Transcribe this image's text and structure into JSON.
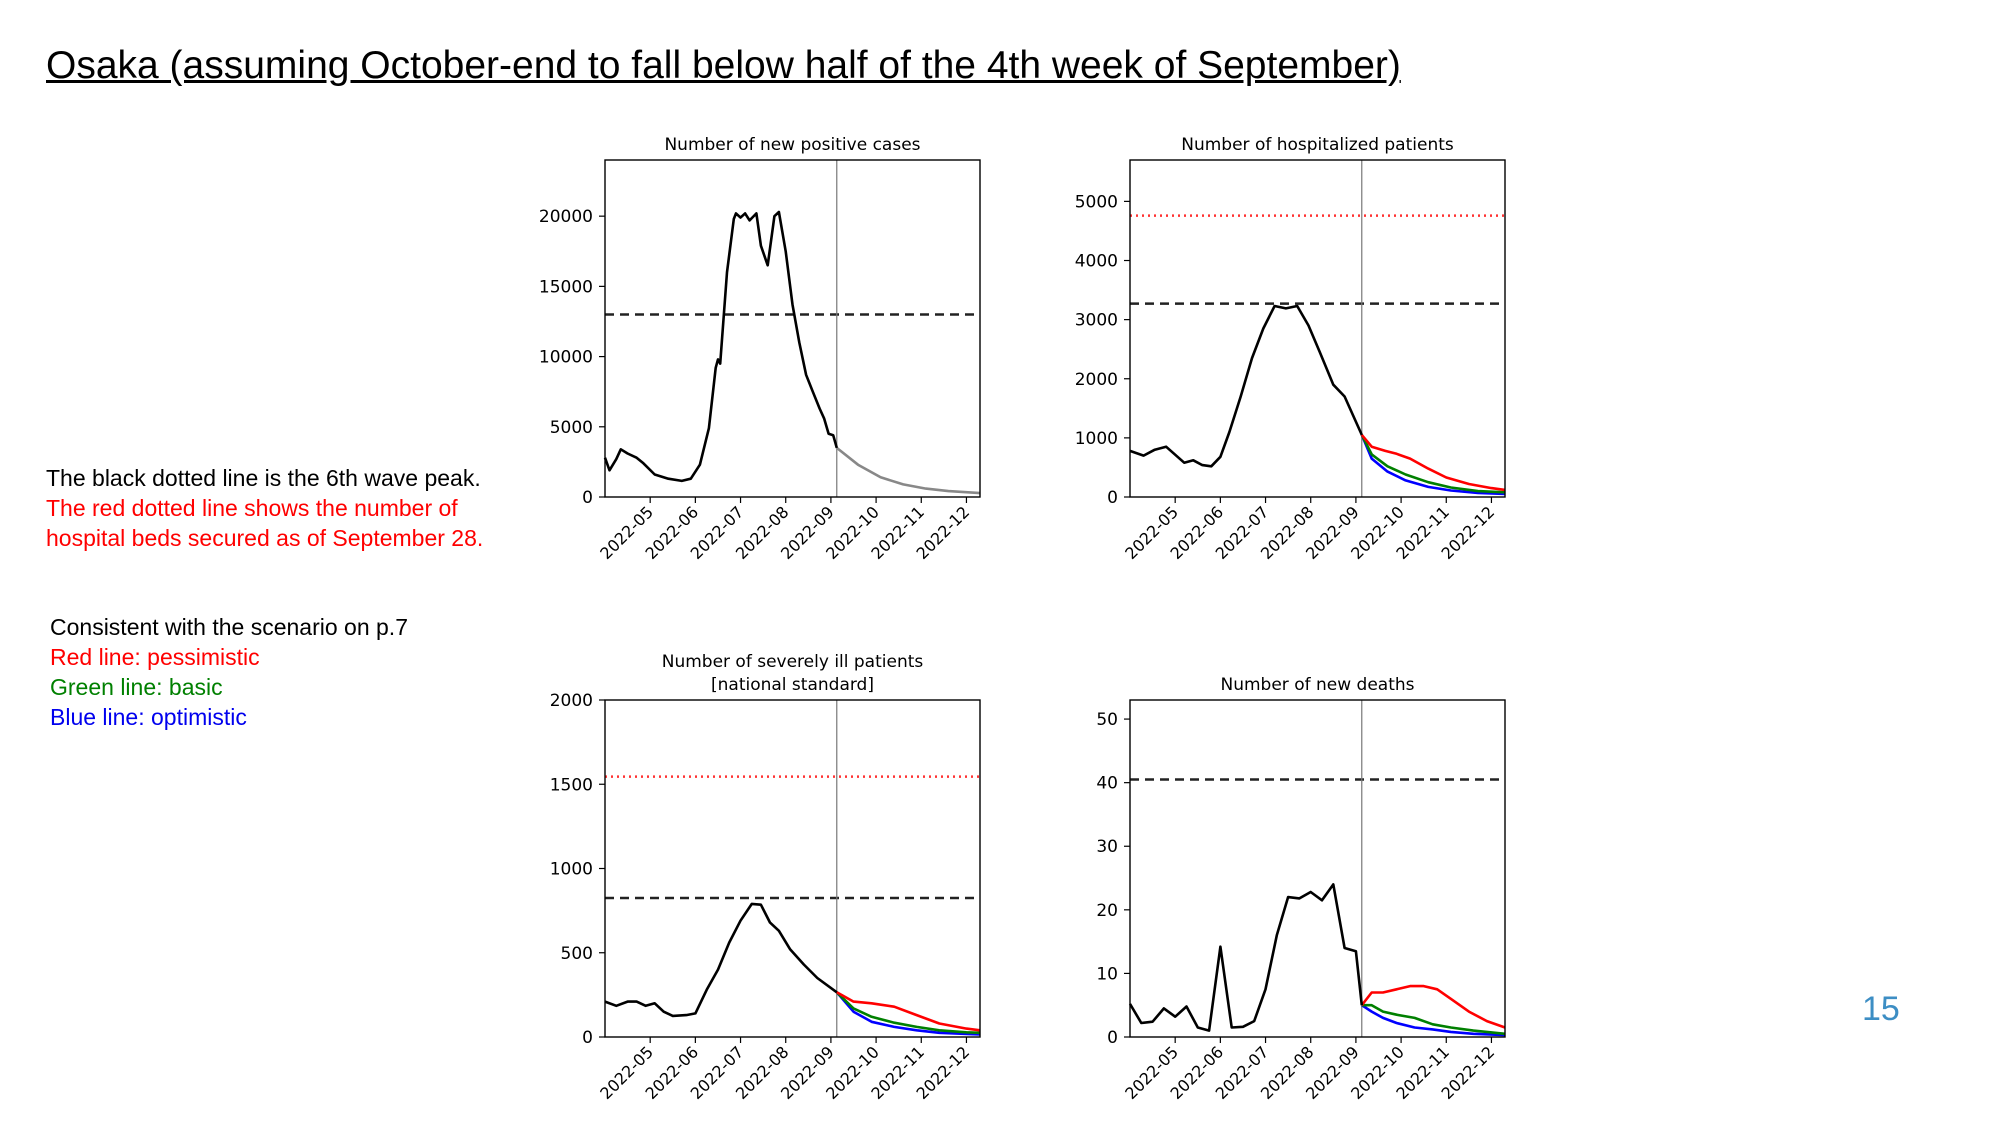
{
  "slide": {
    "title": "Osaka (assuming October-end to fall below half of the 4th week of September)",
    "page_number": "15"
  },
  "notes": {
    "black_line": "The black dotted line is the 6th wave peak.",
    "red_line_1": "The red dotted line shows the number of",
    "red_line_2": "hospital beds secured as of September 28.",
    "scenario_title": "Consistent with the scenario on p.7",
    "red_scenario": "Red line: pessimistic",
    "green_scenario": "Green line: basic",
    "blue_scenario": "Blue line: optimistic"
  },
  "colors": {
    "actual": "#000000",
    "pessimistic": "#ff0000",
    "basic": "#008000",
    "optimistic": "#0000ff",
    "projection_single": "#888888",
    "peak_line": "#222222",
    "bed_line": "#ff3333",
    "divider": "#777777",
    "accent_page_number": "#3d8ec4"
  },
  "chart_data": [
    {
      "id": "positive",
      "type": "line",
      "title": [
        "Number of new positive cases"
      ],
      "xlabel": "",
      "ylabel": "",
      "x_ticks": [
        "2022-05",
        "2022-06",
        "2022-07",
        "2022-08",
        "2022-09",
        "2022-10",
        "2022-11",
        "2022-12"
      ],
      "xlim": [
        4.0,
        12.3
      ],
      "ylim": [
        0,
        24000
      ],
      "y_ticks": [
        0,
        5000,
        10000,
        15000,
        20000
      ],
      "divider_x": 9.13,
      "peak_line": 13000,
      "actual": [
        [
          4.0,
          2800
        ],
        [
          4.1,
          1900
        ],
        [
          4.25,
          2700
        ],
        [
          4.35,
          3400
        ],
        [
          4.5,
          3100
        ],
        [
          4.7,
          2800
        ],
        [
          4.85,
          2400
        ],
        [
          5.1,
          1600
        ],
        [
          5.4,
          1300
        ],
        [
          5.7,
          1150
        ],
        [
          5.9,
          1300
        ],
        [
          6.1,
          2300
        ],
        [
          6.3,
          4900
        ],
        [
          6.45,
          9200
        ],
        [
          6.5,
          9800
        ],
        [
          6.55,
          9500
        ],
        [
          6.7,
          16000
        ],
        [
          6.85,
          19800
        ],
        [
          6.9,
          20200
        ],
        [
          7.0,
          19900
        ],
        [
          7.1,
          20200
        ],
        [
          7.2,
          19700
        ],
        [
          7.35,
          20200
        ],
        [
          7.45,
          17900
        ],
        [
          7.6,
          16500
        ],
        [
          7.75,
          20000
        ],
        [
          7.85,
          20300
        ],
        [
          8.0,
          17500
        ],
        [
          8.15,
          13700
        ],
        [
          8.3,
          11000
        ],
        [
          8.45,
          8700
        ],
        [
          8.6,
          7500
        ],
        [
          8.75,
          6300
        ],
        [
          8.85,
          5600
        ],
        [
          8.95,
          4500
        ],
        [
          9.05,
          4400
        ],
        [
          9.13,
          3500
        ]
      ],
      "projection_single": [
        [
          9.13,
          3500
        ],
        [
          9.6,
          2300
        ],
        [
          10.1,
          1400
        ],
        [
          10.6,
          900
        ],
        [
          11.1,
          600
        ],
        [
          11.6,
          420
        ],
        [
          12.3,
          280
        ]
      ]
    },
    {
      "id": "hospitalized",
      "type": "line",
      "title": [
        "Number of hospitalized patients"
      ],
      "xlabel": "",
      "ylabel": "",
      "x_ticks": [
        "2022-05",
        "2022-06",
        "2022-07",
        "2022-08",
        "2022-09",
        "2022-10",
        "2022-11",
        "2022-12"
      ],
      "xlim": [
        4.0,
        12.3
      ],
      "ylim": [
        0,
        5700
      ],
      "y_ticks": [
        0,
        1000,
        2000,
        3000,
        4000,
        5000
      ],
      "divider_x": 9.13,
      "peak_line": 3270,
      "bed_line": 4760,
      "actual": [
        [
          4.0,
          780
        ],
        [
          4.3,
          700
        ],
        [
          4.55,
          800
        ],
        [
          4.8,
          850
        ],
        [
          5.2,
          580
        ],
        [
          5.4,
          620
        ],
        [
          5.6,
          540
        ],
        [
          5.8,
          520
        ],
        [
          6.0,
          680
        ],
        [
          6.2,
          1100
        ],
        [
          6.45,
          1700
        ],
        [
          6.7,
          2350
        ],
        [
          6.95,
          2850
        ],
        [
          7.2,
          3230
        ],
        [
          7.45,
          3190
        ],
        [
          7.7,
          3230
        ],
        [
          7.95,
          2900
        ],
        [
          8.2,
          2450
        ],
        [
          8.5,
          1900
        ],
        [
          8.75,
          1700
        ],
        [
          9.13,
          1050
        ]
      ],
      "pessimistic": [
        [
          9.13,
          1050
        ],
        [
          9.35,
          850
        ],
        [
          9.65,
          780
        ],
        [
          9.9,
          730
        ],
        [
          10.2,
          650
        ],
        [
          10.6,
          480
        ],
        [
          11.0,
          330
        ],
        [
          11.5,
          220
        ],
        [
          12.0,
          150
        ],
        [
          12.3,
          120
        ]
      ],
      "basic": [
        [
          9.13,
          1050
        ],
        [
          9.35,
          720
        ],
        [
          9.7,
          520
        ],
        [
          10.1,
          380
        ],
        [
          10.6,
          250
        ],
        [
          11.1,
          160
        ],
        [
          11.7,
          100
        ],
        [
          12.3,
          80
        ]
      ],
      "optimistic": [
        [
          9.13,
          1050
        ],
        [
          9.35,
          650
        ],
        [
          9.7,
          430
        ],
        [
          10.1,
          280
        ],
        [
          10.6,
          170
        ],
        [
          11.1,
          110
        ],
        [
          11.7,
          70
        ],
        [
          12.3,
          50
        ]
      ]
    },
    {
      "id": "severe",
      "type": "line",
      "title": [
        "Number of severely ill patients",
        "[national standard]"
      ],
      "xlabel": "",
      "ylabel": "",
      "x_ticks": [
        "2022-05",
        "2022-06",
        "2022-07",
        "2022-08",
        "2022-09",
        "2022-10",
        "2022-11",
        "2022-12"
      ],
      "xlim": [
        4.0,
        12.3
      ],
      "ylim": [
        0,
        2000
      ],
      "y_ticks": [
        0,
        500,
        1000,
        1500,
        2000
      ],
      "divider_x": 9.13,
      "peak_line": 825,
      "bed_line": 1545,
      "actual": [
        [
          4.0,
          210
        ],
        [
          4.25,
          185
        ],
        [
          4.5,
          210
        ],
        [
          4.7,
          210
        ],
        [
          4.9,
          185
        ],
        [
          5.1,
          200
        ],
        [
          5.3,
          150
        ],
        [
          5.5,
          125
        ],
        [
          5.8,
          130
        ],
        [
          6.0,
          140
        ],
        [
          6.25,
          280
        ],
        [
          6.5,
          400
        ],
        [
          6.75,
          560
        ],
        [
          7.0,
          690
        ],
        [
          7.25,
          790
        ],
        [
          7.45,
          785
        ],
        [
          7.65,
          680
        ],
        [
          7.85,
          630
        ],
        [
          8.1,
          520
        ],
        [
          8.4,
          430
        ],
        [
          8.7,
          350
        ],
        [
          9.13,
          265
        ]
      ],
      "pessimistic": [
        [
          9.13,
          265
        ],
        [
          9.5,
          210
        ],
        [
          9.9,
          200
        ],
        [
          10.4,
          180
        ],
        [
          10.9,
          130
        ],
        [
          11.4,
          80
        ],
        [
          12.0,
          50
        ],
        [
          12.3,
          40
        ]
      ],
      "basic": [
        [
          9.13,
          265
        ],
        [
          9.5,
          170
        ],
        [
          9.9,
          120
        ],
        [
          10.4,
          85
        ],
        [
          10.9,
          60
        ],
        [
          11.4,
          40
        ],
        [
          12.0,
          28
        ],
        [
          12.3,
          25
        ]
      ],
      "optimistic": [
        [
          9.13,
          265
        ],
        [
          9.5,
          150
        ],
        [
          9.9,
          90
        ],
        [
          10.4,
          60
        ],
        [
          10.9,
          40
        ],
        [
          11.4,
          25
        ],
        [
          12.0,
          18
        ],
        [
          12.3,
          15
        ]
      ]
    },
    {
      "id": "deaths",
      "type": "line",
      "title": [
        "Number of new deaths"
      ],
      "xlabel": "",
      "ylabel": "",
      "x_ticks": [
        "2022-05",
        "2022-06",
        "2022-07",
        "2022-08",
        "2022-09",
        "2022-10",
        "2022-11",
        "2022-12"
      ],
      "xlim": [
        4.0,
        12.3
      ],
      "ylim": [
        0,
        53
      ],
      "y_ticks": [
        0,
        10,
        20,
        30,
        40,
        50
      ],
      "divider_x": 9.13,
      "peak_line": 40.5,
      "actual": [
        [
          4.0,
          5.2
        ],
        [
          4.25,
          2.2
        ],
        [
          4.5,
          2.4
        ],
        [
          4.75,
          4.5
        ],
        [
          5.0,
          3.2
        ],
        [
          5.25,
          4.8
        ],
        [
          5.5,
          1.5
        ],
        [
          5.75,
          1.0
        ],
        [
          6.0,
          14.2
        ],
        [
          6.25,
          1.5
        ],
        [
          6.5,
          1.6
        ],
        [
          6.75,
          2.5
        ],
        [
          7.0,
          7.5
        ],
        [
          7.25,
          16
        ],
        [
          7.5,
          22
        ],
        [
          7.75,
          21.8
        ],
        [
          8.0,
          22.8
        ],
        [
          8.25,
          21.5
        ],
        [
          8.5,
          24
        ],
        [
          8.75,
          14
        ],
        [
          9.0,
          13.5
        ],
        [
          9.13,
          5
        ]
      ],
      "pessimistic": [
        [
          9.13,
          5
        ],
        [
          9.35,
          7
        ],
        [
          9.6,
          7
        ],
        [
          9.9,
          7.5
        ],
        [
          10.2,
          8
        ],
        [
          10.5,
          8
        ],
        [
          10.8,
          7.5
        ],
        [
          11.1,
          6
        ],
        [
          11.5,
          4
        ],
        [
          11.9,
          2.5
        ],
        [
          12.3,
          1.5
        ]
      ],
      "basic": [
        [
          9.13,
          5
        ],
        [
          9.35,
          5
        ],
        [
          9.6,
          4
        ],
        [
          9.9,
          3.5
        ],
        [
          10.3,
          3
        ],
        [
          10.7,
          2
        ],
        [
          11.1,
          1.5
        ],
        [
          11.6,
          1
        ],
        [
          12.3,
          0.5
        ]
      ],
      "optimistic": [
        [
          9.13,
          5
        ],
        [
          9.35,
          4
        ],
        [
          9.6,
          3
        ],
        [
          9.9,
          2.2
        ],
        [
          10.3,
          1.5
        ],
        [
          10.7,
          1.2
        ],
        [
          11.1,
          0.8
        ],
        [
          11.6,
          0.5
        ],
        [
          12.3,
          0.3
        ]
      ]
    }
  ]
}
